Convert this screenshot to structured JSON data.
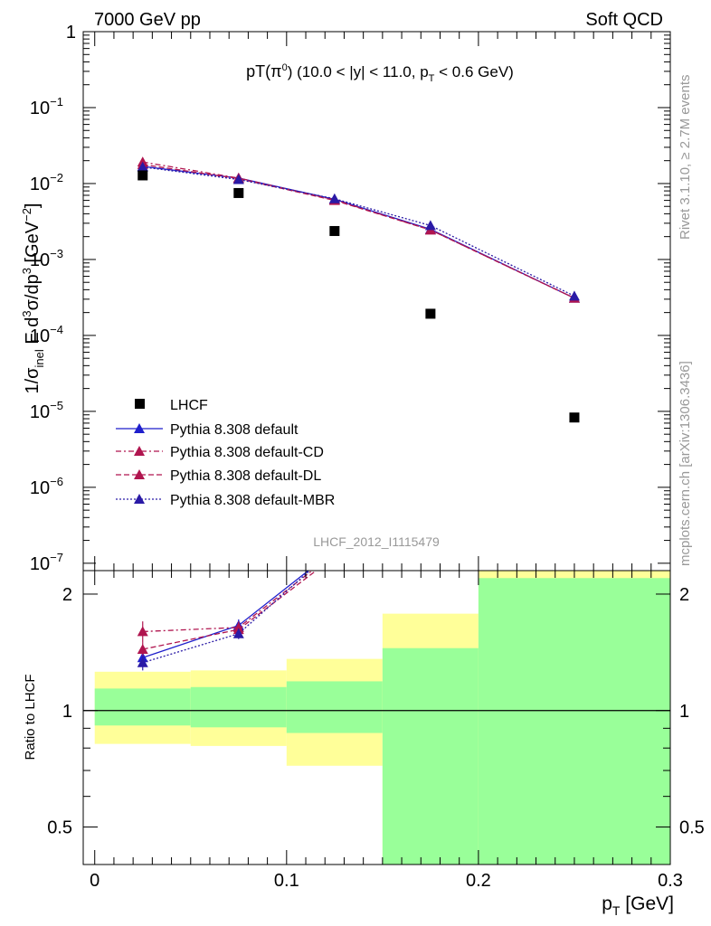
{
  "header": {
    "left": "7000 GeV pp",
    "right": "Soft QCD"
  },
  "side_labels": {
    "rivet": "Rivet 3.1.10, ≥ 2.7M events",
    "mcplots": "mcplots.cern.ch [arXiv:1306.3436]"
  },
  "watermark": "LHCF_2012_I1115479",
  "chart_data": [
    {
      "type": "scatter",
      "panel": "main",
      "title": "pT(π⁰) (10.0 < |y| < 11.0, pT < 0.6 GeV)",
      "ylabel": "1/σinel E d³σ/dp³ [GeV⁻²]",
      "yscale": "log",
      "ylim": [
        8e-08,
        1
      ],
      "xlim": [
        -0.006,
        0.3
      ],
      "y_ticks": [
        {
          "v": 1,
          "m": "1",
          "e": ""
        },
        {
          "v": 0.1,
          "m": "10",
          "e": "−1"
        },
        {
          "v": 0.01,
          "m": "10",
          "e": "−2"
        },
        {
          "v": 0.001,
          "m": "10",
          "e": "−3"
        },
        {
          "v": 0.0001,
          "m": "10",
          "e": "−4"
        },
        {
          "v": 1e-05,
          "m": "10",
          "e": "−5"
        },
        {
          "v": 1e-06,
          "m": "10",
          "e": "−6"
        },
        {
          "v": 1e-07,
          "m": "10",
          "e": "−7"
        }
      ],
      "legend_position": "bottom-left",
      "series": [
        {
          "name": "LHCF",
          "kind": "data",
          "color": "#000000",
          "marker": "square",
          "x": [
            0.025,
            0.075,
            0.125,
            0.175,
            0.25
          ],
          "y": [
            0.0128,
            0.0075,
            0.00237,
            0.000193,
            8.3e-06
          ]
        },
        {
          "name": "Pythia 8.308 default",
          "color": "#1f1fcc",
          "dash": "",
          "marker": "triangle",
          "x": [
            0.025,
            0.075,
            0.125,
            0.175,
            0.25
          ],
          "y": [
            0.0168,
            0.0118,
            0.0062,
            0.0025,
            0.00031
          ]
        },
        {
          "name": "Pythia 8.308 default-CD",
          "color": "#b0154f",
          "dash": "6,3,2,3",
          "marker": "triangle",
          "x": [
            0.025,
            0.075,
            0.125,
            0.175,
            0.25
          ],
          "y": [
            0.0192,
            0.0118,
            0.0061,
            0.00245,
            0.00031
          ]
        },
        {
          "name": "Pythia 8.308 default-DL",
          "color": "#b0154f",
          "dash": "6,3",
          "marker": "triangle",
          "x": [
            0.025,
            0.075,
            0.125,
            0.175,
            0.25
          ],
          "y": [
            0.0178,
            0.0116,
            0.006,
            0.00245,
            0.00031
          ]
        },
        {
          "name": "Pythia 8.308 default-MBR",
          "color": "#2a1aa6",
          "dash": "2,2",
          "marker": "triangle",
          "x": [
            0.025,
            0.075,
            0.125,
            0.175,
            0.25
          ],
          "y": [
            0.0165,
            0.0113,
            0.0063,
            0.0028,
            0.00033
          ]
        }
      ]
    },
    {
      "type": "line",
      "panel": "ratio",
      "ylabel": "Ratio to LHCF",
      "xlabel": "pT [GeV]",
      "yscale": "log",
      "ylim": [
        0.4,
        2.3
      ],
      "xlim": [
        -0.006,
        0.3
      ],
      "x_ticks": [
        "0",
        "0.1",
        "0.2",
        "0.3"
      ],
      "y_ticks": [
        "0.5",
        "1",
        "2"
      ],
      "bands": {
        "yellow": "#ffff99",
        "green": "#99ff99",
        "bins": [
          {
            "x0": 0.0,
            "x1": 0.05,
            "y_lo": 0.82,
            "y_hi": 1.26,
            "g_lo": 0.915,
            "g_hi": 1.14
          },
          {
            "x0": 0.05,
            "x1": 0.1,
            "y_lo": 0.81,
            "y_hi": 1.27,
            "g_lo": 0.905,
            "g_hi": 1.15
          },
          {
            "x0": 0.1,
            "x1": 0.15,
            "y_lo": 0.72,
            "y_hi": 1.36,
            "g_lo": 0.875,
            "g_hi": 1.19
          },
          {
            "x0": 0.15,
            "x1": 0.2,
            "y_lo": 0.4,
            "y_hi": 1.78,
            "g_lo": 0.4,
            "g_hi": 1.45
          },
          {
            "x0": 0.2,
            "x1": 0.3,
            "y_lo": 0.4,
            "y_hi": 2.3,
            "g_lo": 0.4,
            "g_hi": 2.2
          }
        ]
      },
      "series": [
        {
          "name": "Pythia 8.308 default",
          "color": "#1f1fcc",
          "dash": "",
          "x": [
            0.025,
            0.075,
            0.125
          ],
          "y": [
            1.37,
            1.66,
            2.6
          ],
          "err": [
            0.05,
            0.06,
            0
          ]
        },
        {
          "name": "Pythia 8.308 default-CD",
          "color": "#b0154f",
          "dash": "6,3,2,3",
          "x": [
            0.025,
            0.075,
            0.125
          ],
          "y": [
            1.6,
            1.64,
            2.55
          ],
          "err": [
            0.1,
            0.06,
            0
          ]
        },
        {
          "name": "Pythia 8.308 default-DL",
          "color": "#b0154f",
          "dash": "6,3",
          "x": [
            0.025,
            0.075,
            0.125
          ],
          "y": [
            1.44,
            1.62,
            2.5
          ],
          "err": [
            0.06,
            0.05,
            0
          ]
        },
        {
          "name": "Pythia 8.308 default-MBR",
          "color": "#2a1aa6",
          "dash": "2,2",
          "x": [
            0.025,
            0.075,
            0.125
          ],
          "y": [
            1.33,
            1.58,
            2.62
          ],
          "err": [
            0.06,
            0.05,
            0
          ]
        }
      ]
    }
  ]
}
